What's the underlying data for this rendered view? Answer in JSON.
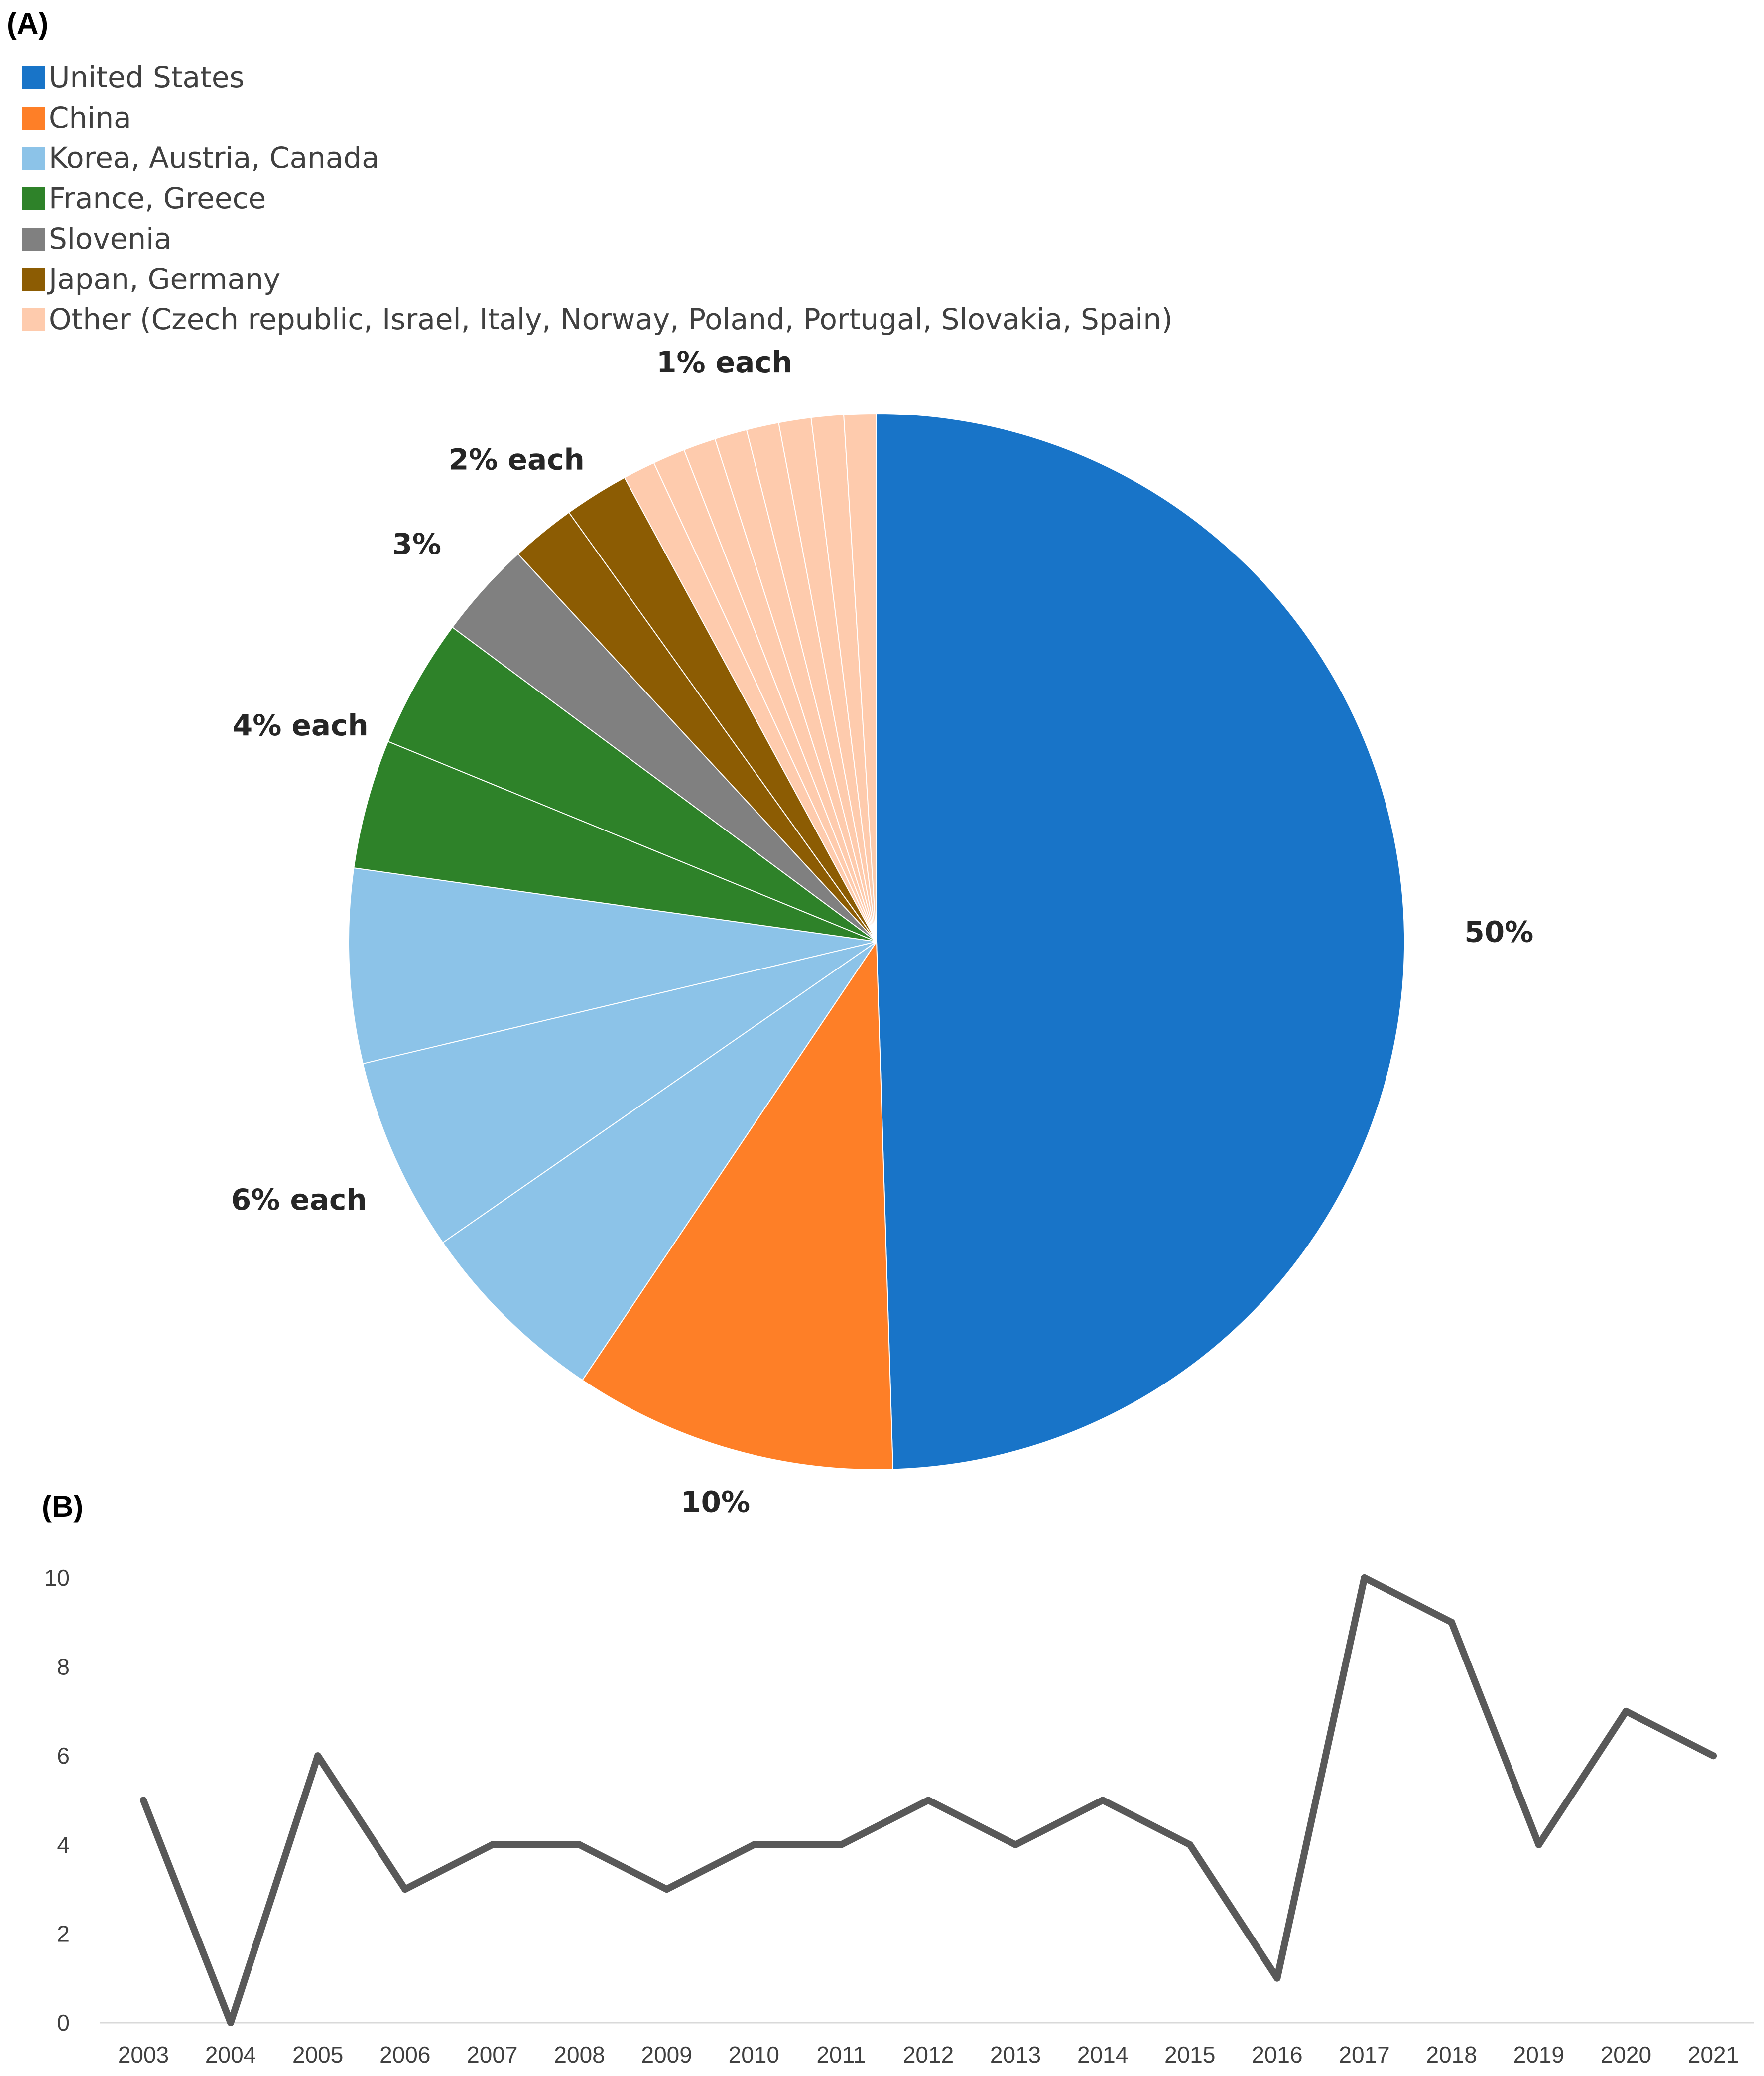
{
  "panels": {
    "a": "(A)",
    "b": "(B)"
  },
  "chart_data": [
    {
      "type": "pie",
      "legend_position": "top-left",
      "legend": [
        {
          "label": "United States",
          "color": "#1874C8"
        },
        {
          "label": "China",
          "color": "#FE7F27"
        },
        {
          "label": "Korea, Austria, Canada",
          "color": "#8CC3E8"
        },
        {
          "label": "France, Greece",
          "color": "#2E8229"
        },
        {
          "label": "Slovenia",
          "color": "#808080"
        },
        {
          "label": "Japan, Germany",
          "color": "#8C5C03"
        },
        {
          "label": "Other (Czech republic, Israel, Italy, Norway, Poland, Portugal, Slovakia, Spain)",
          "color": "#FECBAD"
        }
      ],
      "slices": [
        {
          "group": 0,
          "value": 50
        },
        {
          "group": 1,
          "value": 10
        },
        {
          "group": 2,
          "value": 6
        },
        {
          "group": 2,
          "value": 6
        },
        {
          "group": 2,
          "value": 6
        },
        {
          "group": 3,
          "value": 4
        },
        {
          "group": 3,
          "value": 4
        },
        {
          "group": 4,
          "value": 3
        },
        {
          "group": 5,
          "value": 2
        },
        {
          "group": 5,
          "value": 2
        },
        {
          "group": 6,
          "value": 1
        },
        {
          "group": 6,
          "value": 1
        },
        {
          "group": 6,
          "value": 1
        },
        {
          "group": 6,
          "value": 1
        },
        {
          "group": 6,
          "value": 1
        },
        {
          "group": 6,
          "value": 1
        },
        {
          "group": 6,
          "value": 1
        },
        {
          "group": 6,
          "value": 1
        }
      ],
      "labels": [
        {
          "text": "50%",
          "group": 0
        },
        {
          "text": "10%",
          "group": 1
        },
        {
          "text": "6% each",
          "group": 2
        },
        {
          "text": "4% each",
          "group": 3
        },
        {
          "text": "3%",
          "group": 4
        },
        {
          "text": "2% each",
          "group": 5
        },
        {
          "text": "1% each",
          "group": 6
        }
      ]
    },
    {
      "type": "line",
      "x": [
        "2003",
        "2004",
        "2005",
        "2006",
        "2007",
        "2008",
        "2009",
        "2010",
        "2011",
        "2012",
        "2013",
        "2014",
        "2015",
        "2016",
        "2017",
        "2018",
        "2019",
        "2020",
        "2021"
      ],
      "y": [
        5,
        0,
        6,
        3,
        4,
        4,
        3,
        4,
        4,
        5,
        4,
        5,
        4,
        1,
        10,
        9,
        4,
        7,
        6
      ],
      "yticks": [
        0,
        2,
        4,
        6,
        8,
        10
      ],
      "ylim": [
        0,
        10
      ],
      "color": "#595959",
      "grid": false
    }
  ]
}
